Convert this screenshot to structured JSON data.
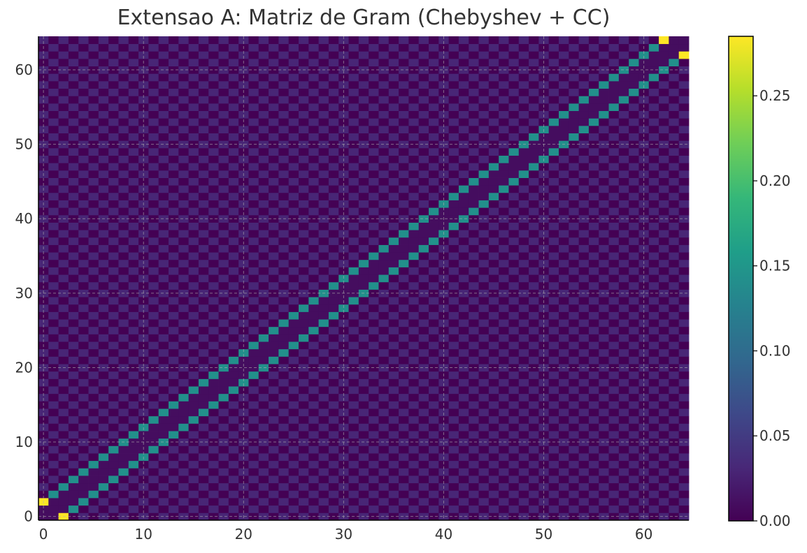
{
  "chart_data": {
    "type": "heatmap",
    "title": "Extensao A: Matriz de Gram (Chebyshev + CC)",
    "xlabel": "",
    "ylabel": "",
    "n": 65,
    "xlim": [
      -0.5,
      64.5
    ],
    "ylim": [
      -0.5,
      64.5
    ],
    "y_origin": "lower",
    "x_ticks": [
      0,
      10,
      20,
      30,
      40,
      50,
      60
    ],
    "y_ticks": [
      0,
      10,
      20,
      30,
      40,
      50,
      60
    ],
    "grid": true,
    "colormap": "viridis",
    "colorbar": {
      "range": [
        0.0,
        0.285
      ],
      "ticks": [
        "0.00",
        "0.05",
        "0.10",
        "0.15",
        "0.20",
        "0.25"
      ],
      "tick_values": [
        0.0,
        0.05,
        0.1,
        0.15,
        0.2,
        0.25
      ]
    },
    "structure": {
      "diagonal_offsets": [
        -2,
        2
      ],
      "band_value": 0.143,
      "corner_entries": [
        {
          "row": 2,
          "col": 0,
          "value": 0.285
        },
        {
          "row": 0,
          "col": 2,
          "value": 0.285
        },
        {
          "row": 62,
          "col": 64,
          "value": 0.285
        },
        {
          "row": 64,
          "col": 62,
          "value": 0.285
        }
      ],
      "even_parity_background": 0.03,
      "odd_parity_background": 0.0,
      "near_band_value": 0.01
    }
  },
  "colors": {
    "text": "#333333",
    "grid": "#b0b0b0",
    "viridis": [
      "#440154",
      "#482878",
      "#3e4989",
      "#31688e",
      "#26828e",
      "#1f9e89",
      "#35b779",
      "#6ece58",
      "#b5de2b",
      "#fde725"
    ]
  }
}
